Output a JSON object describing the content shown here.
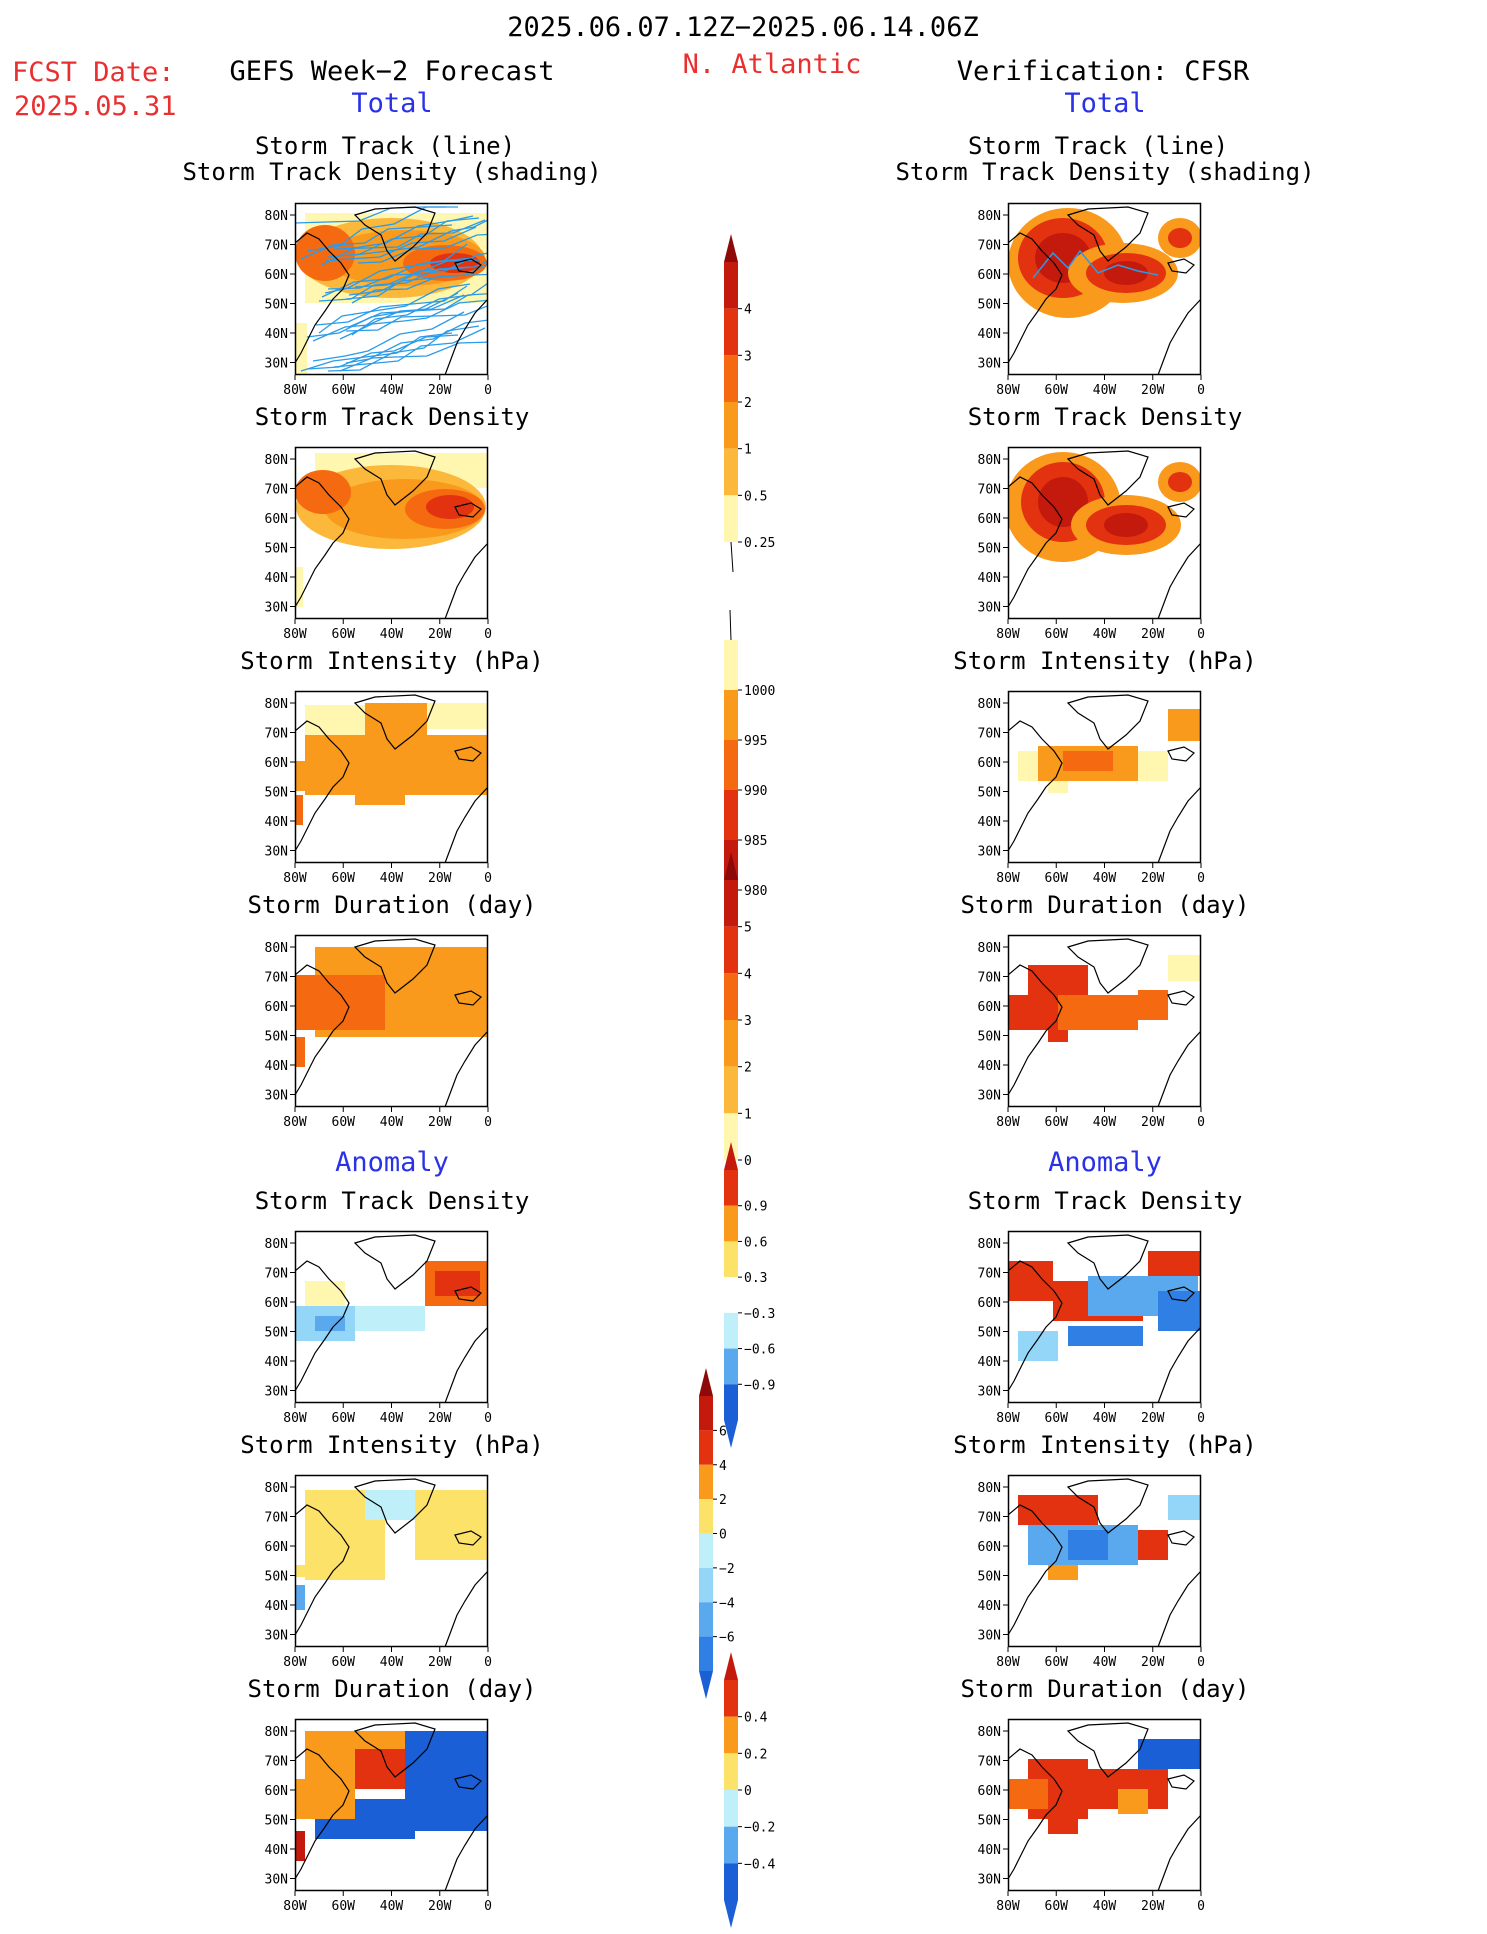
{
  "header": {
    "date_range": "2025.06.07.12Z−2025.06.14.06Z",
    "fcst_label": "FCST Date:",
    "fcst_date": "2025.05.31",
    "left_title": "GEFS Week−2 Forecast",
    "region": "N. Atlantic",
    "right_title": "Verification: CFSR",
    "total_label": "Total",
    "anomaly_label": "Anomaly"
  },
  "axes": {
    "lat_ticks": [
      "80N",
      "70N",
      "60N",
      "50N",
      "40N",
      "30N"
    ],
    "lon_ticks": [
      "80W",
      "60W",
      "40W",
      "20W",
      "0"
    ]
  },
  "panel_titles": {
    "track_line": "Storm Track (line)",
    "track_shading": "Storm Track Density (shading)",
    "density": "Storm Track Density",
    "intensity": "Storm Intensity (hPa)",
    "duration": "Storm Duration (day)"
  },
  "colorbars": {
    "density": [
      "4",
      "3",
      "2",
      "1",
      "0.5",
      "0.25"
    ],
    "intensity": [
      "1000",
      "995",
      "990",
      "985",
      "980"
    ],
    "duration": [
      "5",
      "4",
      "3",
      "2",
      "1",
      "0"
    ],
    "density_anom": [
      "0.9",
      "0.6",
      "0.3",
      "−0.3",
      "−0.6",
      "−0.9"
    ],
    "intensity_anom": [
      "6",
      "4",
      "2",
      "0",
      "−2",
      "−4",
      "−6"
    ],
    "duration_anom": [
      "0.4",
      "0.2",
      "0",
      "−0.2",
      "−0.4"
    ]
  },
  "colors": {
    "warm": [
      "#fff7b0",
      "#fde26a",
      "#fbb83a",
      "#f99a1c",
      "#f56a10",
      "#e23210",
      "#c41a0e",
      "#8e0a0a"
    ],
    "cool": [
      "#bff0fa",
      "#93d6f8",
      "#5aa8ee",
      "#2f7fe4",
      "#1a5fd6"
    ],
    "track_line": "#2a9be8"
  }
}
